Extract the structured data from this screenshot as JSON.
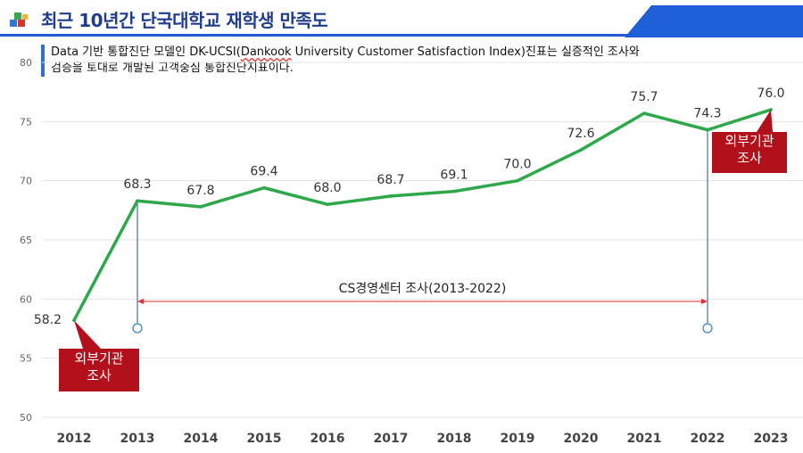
{
  "header": {
    "title": "최근 10년간 단국대학교 재학생 만족도"
  },
  "description": {
    "line1_pre": "Data 기반 통합진단 모델인 DK-UCSI(",
    "line1_underlined": "Dankook",
    "line1_post": " University Customer Satisfaction Index)진표는 실증적인 조사와",
    "line2": "검증을 토대로 개발된 고객중심 통합진단지표이다."
  },
  "colors": {
    "line": "#2ea84a",
    "accent_blue": "#1f5fd6",
    "note_red": "#b2101a",
    "range_red": "#e03030"
  },
  "annotations": {
    "range_label": "CS경영센터 조사(2013-2022)",
    "range_from": 2013,
    "range_to": 2022,
    "external_survey_label_line1": "외부기관",
    "external_survey_label_line2": "조사"
  },
  "chart_data": {
    "type": "line",
    "categories": [
      "2012",
      "2013",
      "2014",
      "2015",
      "2016",
      "2017",
      "2018",
      "2019",
      "2020",
      "2021",
      "2022",
      "2023"
    ],
    "series": [
      {
        "values": [
          58.2,
          68.3,
          67.8,
          69.4,
          68.0,
          68.7,
          69.1,
          70.0,
          72.6,
          75.7,
          74.3,
          76.0
        ]
      }
    ],
    "data_labels": [
      "58.2",
      "68.3",
      "67.8",
      "69.4",
      "68.0",
      "68.7",
      "69.1",
      "70.0",
      "72.6",
      "75.7",
      "74.3",
      "76.0"
    ],
    "ylim": [
      50,
      80
    ],
    "yticks": [
      50,
      55,
      60,
      65,
      70,
      75,
      80
    ],
    "grid": true,
    "legend": "none"
  }
}
